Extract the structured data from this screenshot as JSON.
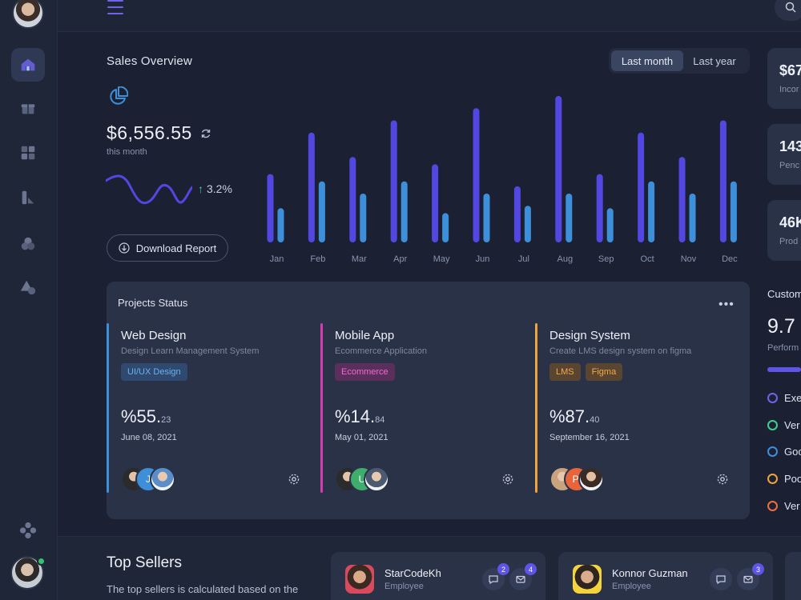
{
  "colors": {
    "bar_primary": "#5247e0",
    "bar_secondary": "#3d8fd9",
    "accent": "#6f63e8"
  },
  "nav": {
    "items": [
      "home-icon",
      "gift-icon",
      "grid-icon",
      "chart-icon",
      "circles-icon",
      "shapes-icon"
    ],
    "settings": "settings-icon"
  },
  "sales": {
    "title": "Sales Overview",
    "ranges": [
      "Last month",
      "Last year"
    ],
    "active_range": "Last month",
    "amount": "$6,556.55",
    "period": "this month",
    "growth": "3.2%",
    "download_label": "Download Report"
  },
  "chart_data": {
    "type": "bar",
    "categories": [
      "Jan",
      "Feb",
      "Mar",
      "Apr",
      "May",
      "Jun",
      "Jul",
      "Aug",
      "Sep",
      "Oct",
      "Nov",
      "Dec"
    ],
    "series": [
      {
        "values": [
          56,
          90,
          70,
          100,
          64,
          110,
          46,
          120,
          56,
          90,
          70,
          100
        ]
      },
      {
        "values": [
          28,
          50,
          40,
          50,
          24,
          40,
          30,
          40,
          28,
          50,
          40,
          50
        ]
      }
    ],
    "ylim": [
      0,
      120
    ],
    "grid": false,
    "legend": false
  },
  "projects": {
    "title": "Projects Status",
    "items": [
      {
        "name": "Web Design",
        "subtitle": "Design Learn Management System",
        "tags": [
          "UI/UX Design"
        ],
        "percent_main": "%55.",
        "percent_decimal": "23",
        "date": "June 08, 2021",
        "color": "#3d8fd9",
        "avatar_letter": "J"
      },
      {
        "name": "Mobile App",
        "subtitle": "Ecommerce Application",
        "tags": [
          "Ecommerce"
        ],
        "percent_main": "%14.",
        "percent_decimal": "84",
        "date": "May 01, 2021",
        "color": "#d63bb0",
        "avatar_letter": "U"
      },
      {
        "name": "Design System",
        "subtitle": "Create LMS design system on figma",
        "tags": [
          "LMS",
          "Figma"
        ],
        "percent_main": "%87.",
        "percent_decimal": "40",
        "date": "September 16, 2021",
        "color": "#f0a23b",
        "avatar_letter": "Pl"
      }
    ]
  },
  "stats": [
    {
      "value": "$67",
      "label": "Incor"
    },
    {
      "value": "143",
      "label": "Penc"
    },
    {
      "value": "46K",
      "label": "Prod"
    }
  ],
  "customers": {
    "title": "Custom",
    "score": "9.7",
    "subtitle": "Perform",
    "legend": [
      {
        "label": "Exe",
        "color": "#6f63e8"
      },
      {
        "label": "Ver",
        "color": "#3fcf8e"
      },
      {
        "label": "Goo",
        "color": "#3d8fd9"
      },
      {
        "label": "Poo",
        "color": "#f0a23b"
      },
      {
        "label": "Ver",
        "color": "#f0703b"
      }
    ]
  },
  "sellers": {
    "title": "Top Sellers",
    "description": "The top sellers is calculated based on the",
    "items": [
      {
        "name": "StarCodeKh",
        "role": "Employee",
        "messages": "2",
        "mails": "4"
      },
      {
        "name": "Konnor Guzman",
        "role": "Employee",
        "messages": "",
        "mails": "3"
      }
    ]
  }
}
